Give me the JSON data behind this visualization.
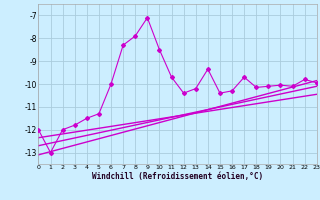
{
  "background_color": "#cceeff",
  "grid_color": "#aaccdd",
  "line_color": "#cc00cc",
  "xlabel": "Windchill (Refroidissement éolien,°C)",
  "xlim": [
    0,
    23
  ],
  "ylim": [
    -13.5,
    -6.5
  ],
  "yticks": [
    -13,
    -12,
    -11,
    -10,
    -9,
    -8,
    -7
  ],
  "xticks": [
    0,
    1,
    2,
    3,
    4,
    5,
    6,
    7,
    8,
    9,
    10,
    11,
    12,
    13,
    14,
    15,
    16,
    17,
    18,
    19,
    20,
    21,
    22,
    23
  ],
  "main_x": [
    0,
    1,
    2,
    3,
    4,
    5,
    6,
    7,
    8,
    9,
    10,
    11,
    12,
    13,
    14,
    15,
    16,
    17,
    18,
    19,
    20,
    21,
    22,
    23
  ],
  "main_y": [
    -12.0,
    -13.0,
    -12.0,
    -11.8,
    -11.5,
    -11.3,
    -10.0,
    -8.3,
    -7.9,
    -7.1,
    -8.5,
    -9.7,
    -10.4,
    -10.2,
    -9.35,
    -10.4,
    -10.3,
    -9.7,
    -10.15,
    -10.1,
    -10.05,
    -10.1,
    -9.8,
    -9.95
  ],
  "trend1_x": [
    0,
    23
  ],
  "trend1_y": [
    -13.1,
    -9.85
  ],
  "trend2_x": [
    0,
    23
  ],
  "trend2_y": [
    -12.7,
    -10.1
  ],
  "trend3_x": [
    0,
    23
  ],
  "trend3_y": [
    -12.35,
    -10.45
  ]
}
